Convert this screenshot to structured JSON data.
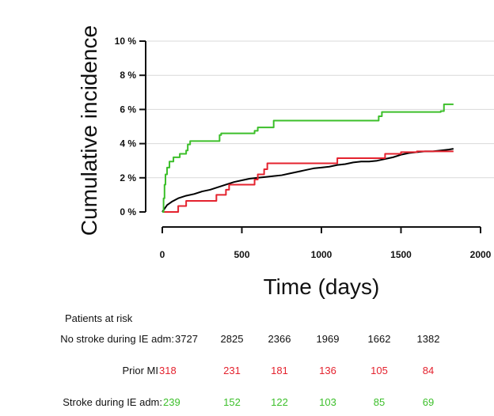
{
  "chart_data": {
    "type": "line",
    "xlabel": "Time (days)",
    "ylabel": "Cumulative incidence",
    "xlim": [
      0,
      2000
    ],
    "ylim": [
      0,
      10
    ],
    "x_ticks": [
      "0",
      "500",
      "1000",
      "1500",
      "2000"
    ],
    "x_tick_values": [
      0,
      500,
      1000,
      1500,
      2000
    ],
    "y_ticks": [
      "0 %",
      "2 %",
      "4 %",
      "6 %",
      "8 %",
      "10 %"
    ],
    "y_tick_values": [
      0,
      2,
      4,
      6,
      8,
      10
    ],
    "grid": "horizontal",
    "series": [
      {
        "color": "#000000",
        "step": false,
        "points": [
          [
            0,
            0
          ],
          [
            30,
            0.4
          ],
          [
            60,
            0.6
          ],
          [
            100,
            0.8
          ],
          [
            150,
            0.95
          ],
          [
            200,
            1.05
          ],
          [
            250,
            1.2
          ],
          [
            300,
            1.3
          ],
          [
            350,
            1.45
          ],
          [
            400,
            1.6
          ],
          [
            450,
            1.75
          ],
          [
            500,
            1.85
          ],
          [
            550,
            1.95
          ],
          [
            600,
            2.0
          ],
          [
            650,
            2.05
          ],
          [
            700,
            2.1
          ],
          [
            750,
            2.15
          ],
          [
            800,
            2.25
          ],
          [
            850,
            2.35
          ],
          [
            900,
            2.45
          ],
          [
            950,
            2.55
          ],
          [
            1000,
            2.6
          ],
          [
            1050,
            2.65
          ],
          [
            1100,
            2.75
          ],
          [
            1150,
            2.8
          ],
          [
            1200,
            2.9
          ],
          [
            1250,
            2.95
          ],
          [
            1300,
            2.95
          ],
          [
            1350,
            3.0
          ],
          [
            1400,
            3.1
          ],
          [
            1450,
            3.2
          ],
          [
            1500,
            3.35
          ],
          [
            1550,
            3.45
          ],
          [
            1600,
            3.5
          ],
          [
            1650,
            3.55
          ],
          [
            1700,
            3.55
          ],
          [
            1750,
            3.6
          ],
          [
            1800,
            3.65
          ],
          [
            1830,
            3.7
          ]
        ]
      },
      {
        "color": "#e4222e",
        "step": true,
        "points": [
          [
            0,
            0
          ],
          [
            100,
            0.35
          ],
          [
            150,
            0.65
          ],
          [
            300,
            0.65
          ],
          [
            340,
            1.0
          ],
          [
            400,
            1.3
          ],
          [
            420,
            1.6
          ],
          [
            580,
            1.9
          ],
          [
            600,
            2.2
          ],
          [
            640,
            2.5
          ],
          [
            660,
            2.85
          ],
          [
            1100,
            3.15
          ],
          [
            1400,
            3.4
          ],
          [
            1500,
            3.5
          ],
          [
            1600,
            3.55
          ],
          [
            1830,
            3.55
          ]
        ]
      },
      {
        "color": "#3cbf2a",
        "step": true,
        "points": [
          [
            0,
            0
          ],
          [
            8,
            0.8
          ],
          [
            14,
            1.6
          ],
          [
            20,
            2.2
          ],
          [
            30,
            2.6
          ],
          [
            45,
            2.95
          ],
          [
            70,
            3.2
          ],
          [
            110,
            3.4
          ],
          [
            150,
            3.6
          ],
          [
            160,
            3.95
          ],
          [
            175,
            4.15
          ],
          [
            360,
            4.5
          ],
          [
            370,
            4.6
          ],
          [
            580,
            4.75
          ],
          [
            600,
            4.95
          ],
          [
            700,
            5.35
          ],
          [
            1080,
            5.35
          ],
          [
            1360,
            5.6
          ],
          [
            1380,
            5.85
          ],
          [
            1750,
            5.9
          ],
          [
            1770,
            6.3
          ],
          [
            1830,
            6.3
          ]
        ]
      }
    ]
  },
  "risk_table": {
    "title": "Patients at risk",
    "rows": [
      {
        "label": "No stroke during IE adm:",
        "color": "#111111",
        "values": [
          "3727",
          "2825",
          "2366",
          "1969",
          "1662",
          "1382"
        ]
      },
      {
        "label": "Prior MI",
        "color": "#e4222e",
        "values": [
          "318",
          "231",
          "181",
          "136",
          "105",
          "84"
        ]
      },
      {
        "label": "Stroke during IE adm:",
        "color": "#3cbf2a",
        "values": [
          "239",
          "152",
          "122",
          "103",
          "85",
          "69"
        ]
      }
    ]
  }
}
